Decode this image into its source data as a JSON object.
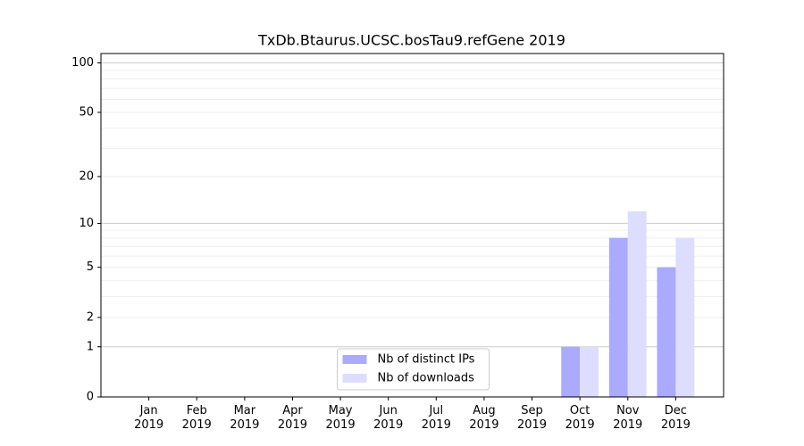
{
  "chart_data": {
    "type": "bar",
    "title": "TxDb.Btaurus.UCSC.bosTau9.refGene 2019",
    "categories": [
      "Jan 2019",
      "Feb 2019",
      "Mar 2019",
      "Apr 2019",
      "May 2019",
      "Jun 2019",
      "Jul 2019",
      "Aug 2019",
      "Sep 2019",
      "Oct 2019",
      "Nov 2019",
      "Dec 2019"
    ],
    "series": [
      {
        "name": "Nb of distinct IPs",
        "color": "#aaaaff",
        "values": [
          0,
          0,
          0,
          0,
          0,
          0,
          0,
          0,
          0,
          1,
          8,
          5
        ]
      },
      {
        "name": "Nb of downloads",
        "color": "#ddddff",
        "values": [
          0,
          0,
          0,
          0,
          0,
          0,
          0,
          0,
          0,
          1,
          12,
          8
        ]
      }
    ],
    "yscale": "log1p",
    "ylim": [
      0,
      114
    ],
    "yticks": [
      0,
      1,
      2,
      5,
      10,
      20,
      50,
      100
    ],
    "yminor": [
      3,
      4,
      6,
      7,
      8,
      9,
      30,
      40,
      60,
      70,
      80,
      90
    ],
    "grid": true,
    "legend": "lower center"
  }
}
